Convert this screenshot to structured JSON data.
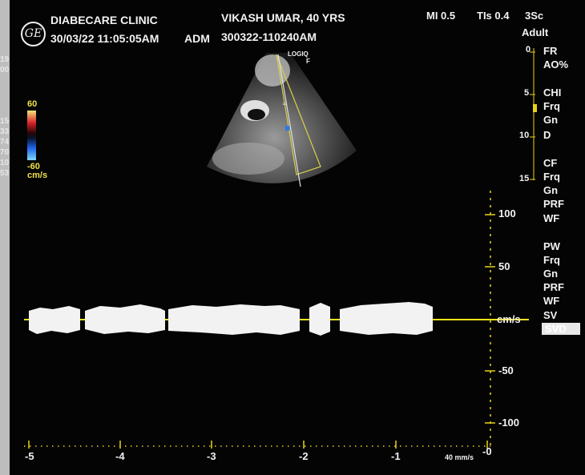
{
  "header": {
    "clinic": "DIABECARE CLINIC",
    "datetime": "30/03/22 11:05:05AM",
    "adm_label": "ADM",
    "patient": "VIKASH UMAR, 40 YRS",
    "exam_id": "300322-110240AM",
    "mi": "MI 0.5",
    "tis": "TIs 0.4",
    "probe": "3Sc",
    "preset": "Adult"
  },
  "logo": {
    "text": "GE"
  },
  "image": {
    "logiq": "LOGIQ",
    "logiq_sub": "F"
  },
  "color_scale": {
    "max": "60",
    "min": "-60",
    "unit": "cm/s",
    "colors": [
      "#f7e27a",
      "#d8222a",
      "#000000",
      "#1f62e8",
      "#7fd8f8"
    ]
  },
  "depth_scale": [
    "0",
    "5",
    "10",
    "15"
  ],
  "left_edge_digits": [
    "19",
    "00",
    "15",
    "33",
    "74",
    "70",
    "10",
    "53"
  ],
  "right_menu": {
    "block1": [
      "FR",
      "AO%"
    ],
    "block2": [
      "CHI",
      "Frq",
      "Gn",
      "D"
    ],
    "block3": [
      "CF",
      "Frq",
      "Gn",
      "PRF",
      "WF"
    ],
    "block4": [
      "PW",
      "Frq",
      "Gn",
      "PRF",
      "WF",
      "SV",
      "SVD"
    ]
  },
  "velocity_scale": {
    "labels": [
      "100",
      "50",
      "cm/s",
      "-50",
      "-100"
    ],
    "values": [
      100,
      50,
      0,
      -50,
      -100
    ]
  },
  "time_axis": {
    "labels": [
      "-5",
      "-4",
      "-3",
      "-2",
      "-1",
      "-0"
    ],
    "sweep": "40 mm/s"
  },
  "colors": {
    "baseline": "#f2e318",
    "axis": "#e8d21a",
    "text": "#f2f2f2"
  }
}
